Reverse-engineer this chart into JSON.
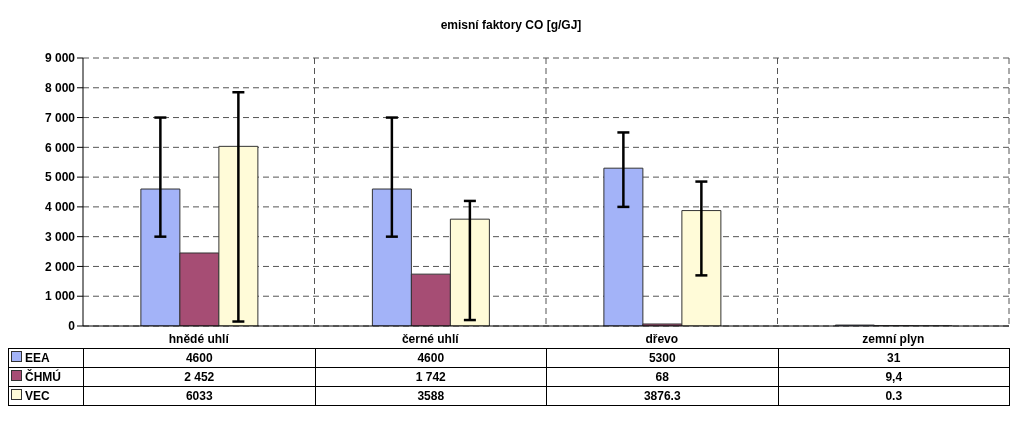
{
  "chart_data": {
    "type": "bar",
    "title": "emisní faktory CO [g/GJ]",
    "categories": [
      "hnědé uhlí",
      "černé uhlí",
      "dřevo",
      "zemní plyn"
    ],
    "series": [
      {
        "name": "EEA",
        "color": "#a3b3f8",
        "values": [
          4600,
          4600,
          5300,
          31
        ],
        "value_labels": [
          "4600",
          "4600",
          "5300",
          "31"
        ],
        "errors": [
          [
            3000,
            7000
          ],
          [
            3000,
            7000
          ],
          [
            4000,
            6500
          ],
          null
        ]
      },
      {
        "name": "ČHMÚ",
        "color": "#a64d74",
        "values": [
          2452,
          1742,
          68,
          9.4
        ],
        "value_labels": [
          "2 452",
          "1 742",
          "68",
          "9,4"
        ]
      },
      {
        "name": "VEC",
        "color": "#fffbd8",
        "values": [
          6033,
          3588,
          3876.3,
          0.3
        ],
        "value_labels": [
          "6033",
          "3588",
          "3876.3",
          "0.3"
        ],
        "errors": [
          [
            150,
            7850
          ],
          [
            200,
            4200
          ],
          [
            1700,
            4850
          ],
          null
        ]
      }
    ],
    "ylim": [
      0,
      9000
    ],
    "yticks": [
      {
        "value": 0,
        "label": "0"
      },
      {
        "value": 1000,
        "label": "1 000"
      },
      {
        "value": 2000,
        "label": "2 000"
      },
      {
        "value": 3000,
        "label": "3 000"
      },
      {
        "value": 4000,
        "label": "4 000"
      },
      {
        "value": 5000,
        "label": "5 000"
      },
      {
        "value": 6000,
        "label": "6 000"
      },
      {
        "value": 7000,
        "label": "7 000"
      },
      {
        "value": 8000,
        "label": "8 000"
      },
      {
        "value": 9000,
        "label": "9 000"
      }
    ],
    "grid": true,
    "legend": "bottom left"
  }
}
